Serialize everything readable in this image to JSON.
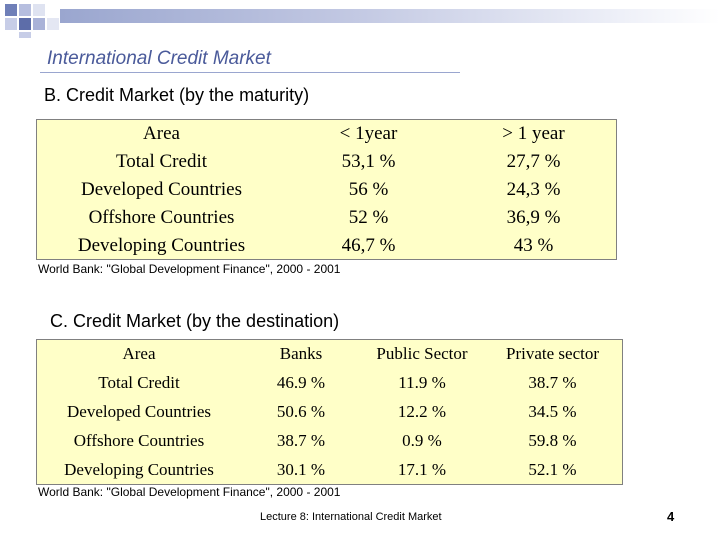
{
  "slide": {
    "title": "International Credit Market",
    "footer": "Lecture 8: International Credit Market",
    "page_number": "4",
    "accent_color": "#4a5a9a",
    "table_background": "#ffffc8"
  },
  "section_b": {
    "heading": "B. Credit Market (by the maturity)",
    "columns": [
      "Area",
      "< 1year",
      "> 1 year"
    ],
    "rows": [
      [
        "Total Credit",
        "53,1 %",
        "27,7 %"
      ],
      [
        "Developed Countries",
        "56 %",
        "24,3 %"
      ],
      [
        "Offshore Countries",
        "52 %",
        "36,9 %"
      ],
      [
        "Developing Countries",
        "46,7 %",
        "43 %"
      ]
    ],
    "source": "World Bank: \"Global Development Finance\", 2000 - 2001"
  },
  "section_c": {
    "heading": "C. Credit Market (by the destination)",
    "columns": [
      "Area",
      "Banks",
      "Public Sector",
      "Private sector"
    ],
    "rows": [
      [
        "Total Credit",
        "46.9 %",
        "11.9 %",
        "38.7 %"
      ],
      [
        "Developed Countries",
        "50.6 %",
        "12.2 %",
        "34.5 %"
      ],
      [
        "Offshore Countries",
        "38.7 %",
        "0.9 %",
        "59.8 %"
      ],
      [
        "Developing Countries",
        "30.1 %",
        "17.1 %",
        "52.1 %"
      ]
    ],
    "source": "World Bank: \"Global Development Finance\", 2000 - 2001"
  }
}
